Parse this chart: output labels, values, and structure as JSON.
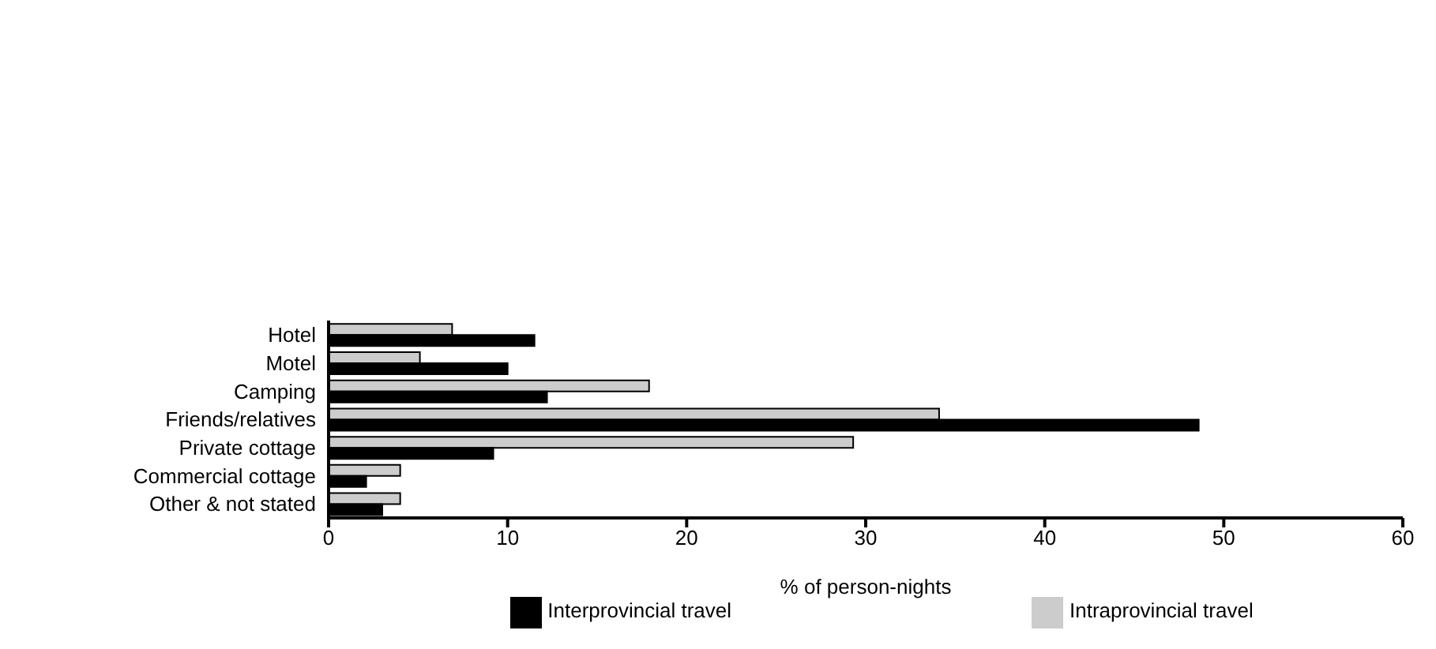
{
  "chart_data": {
    "type": "bar",
    "orientation": "horizontal",
    "xlabel": "% of person-nights",
    "categories": [
      "Hotel",
      "Motel",
      "Camping",
      "Friends/relatives",
      "Private cottage",
      "Commercial cottage",
      "Other & not stated"
    ],
    "series": [
      {
        "name": "Intraprovincial travel",
        "color": "#cccccc",
        "values": [
          6.9,
          5.1,
          17.9,
          34.1,
          29.3,
          4.0,
          4.0
        ]
      },
      {
        "name": "Interprovincial travel",
        "color": "#000000",
        "values": [
          11.5,
          10.0,
          12.2,
          48.6,
          9.2,
          2.1,
          3.0
        ]
      }
    ],
    "xlim": [
      0,
      60
    ],
    "xticks": [
      0,
      10,
      20,
      30,
      40,
      50,
      60
    ],
    "grid": false,
    "legend": "bottom"
  }
}
